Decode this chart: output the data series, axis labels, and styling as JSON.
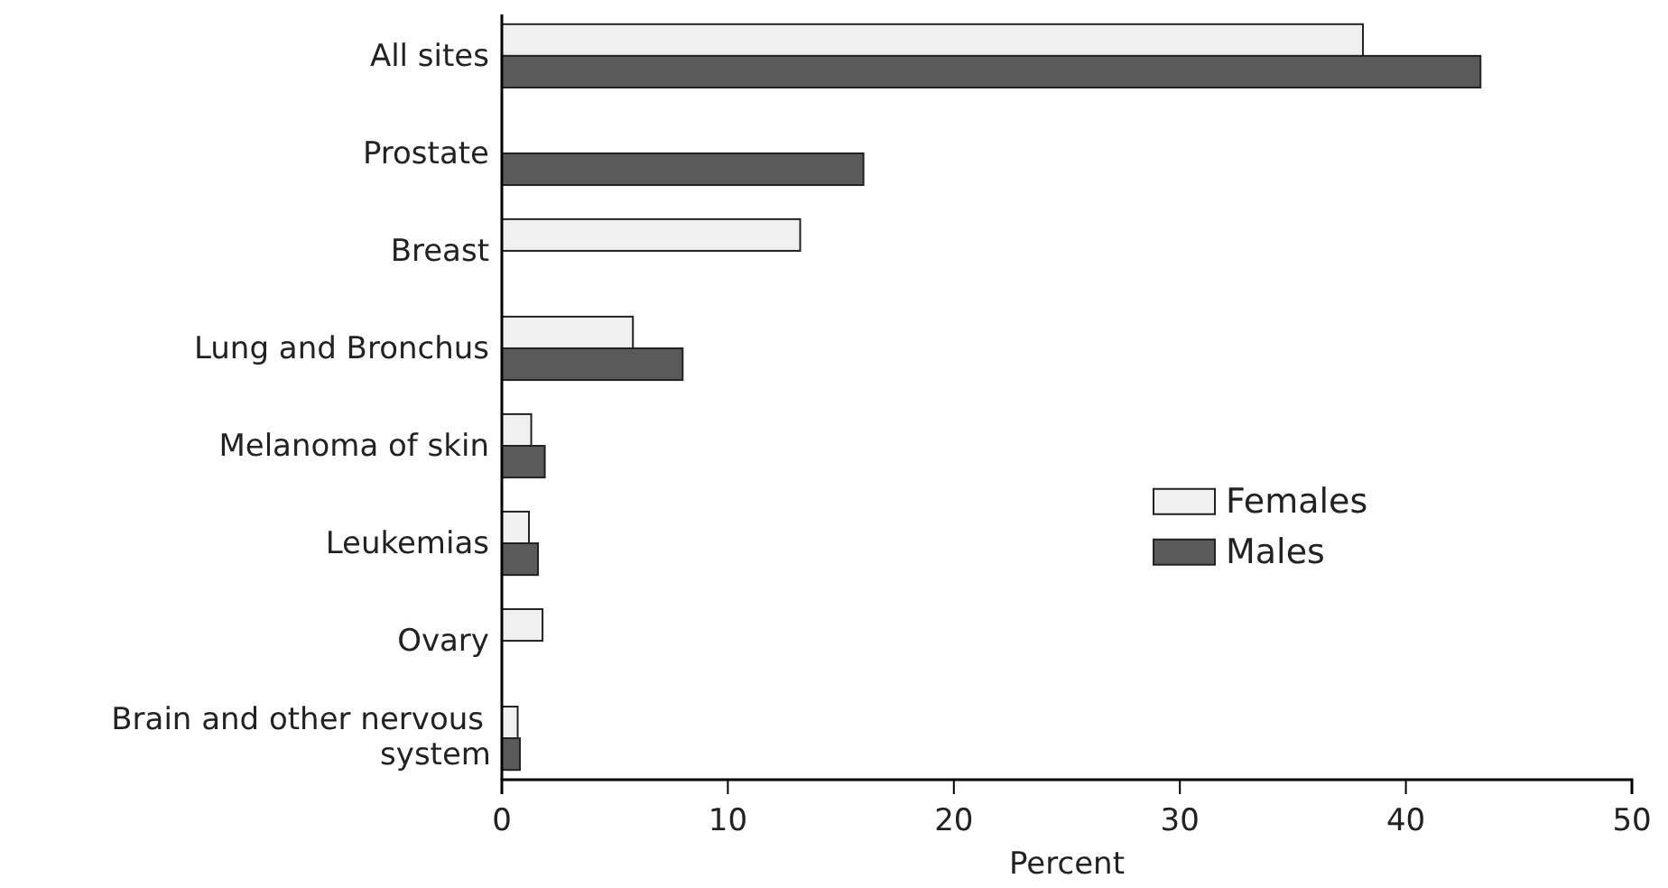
{
  "chart_data": {
    "type": "bar",
    "orientation": "horizontal",
    "xlabel": "Percent",
    "categories": [
      "All sites",
      "Prostate",
      "Breast",
      "Lung and Bronchus",
      "Melanoma of skin",
      "Leukemias",
      "Ovary",
      "Brain and other nervous system"
    ],
    "series": [
      {
        "name": "Females",
        "color": "#f0f0f0",
        "values": [
          38.1,
          null,
          13.2,
          5.8,
          1.3,
          1.2,
          1.8,
          0.7
        ]
      },
      {
        "name": "Males",
        "color": "#5a5a5a",
        "values": [
          43.3,
          16.0,
          null,
          8.0,
          1.9,
          1.6,
          null,
          0.8
        ]
      }
    ],
    "xlim": [
      0,
      50
    ],
    "xticks": [
      0,
      10,
      20,
      30,
      40,
      50
    ],
    "grid": false,
    "legend": "right"
  }
}
